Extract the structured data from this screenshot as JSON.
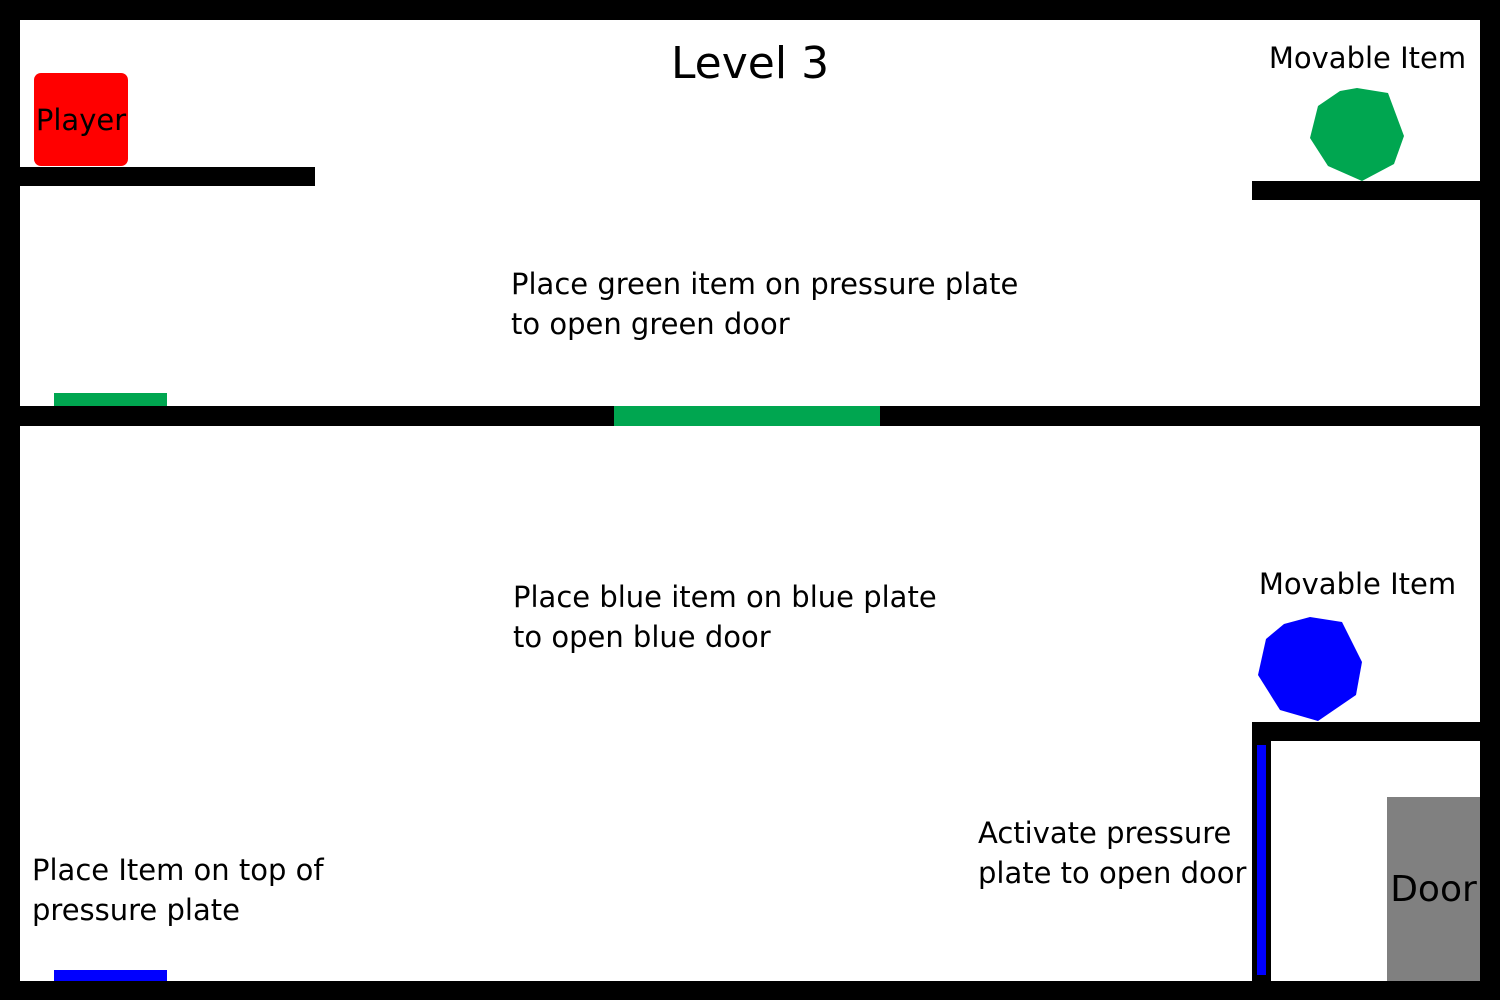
{
  "level": {
    "title": "Level 3"
  },
  "player": {
    "label": "Player",
    "color": "#ff0000"
  },
  "items": [
    {
      "label": "Movable Item",
      "color": "#00a650",
      "shape": "nonagon"
    },
    {
      "label": "Movable Item",
      "color": "#0000ff",
      "shape": "nonagon"
    }
  ],
  "instructions": {
    "green": "Place green item on pressure plate\nto open green door",
    "blue": "Place blue item on blue plate\nto open blue door",
    "place_item": "Place Item on top of\npressure plate",
    "activate": "Activate pressure\nplate to open door"
  },
  "door": {
    "label": "Door",
    "color": "#808080"
  },
  "colors": {
    "wall": "#000000",
    "background": "#ffffff",
    "green": "#00a650",
    "blue": "#0000ff",
    "player": "#ff0000",
    "door": "#808080"
  }
}
